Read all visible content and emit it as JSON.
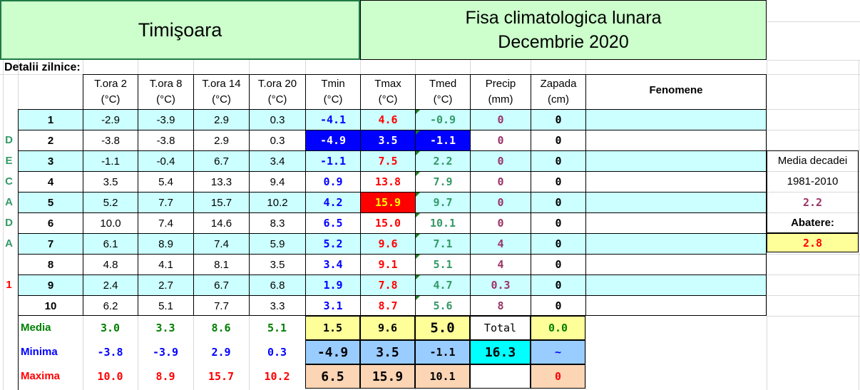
{
  "header": {
    "city": "Timişoara",
    "title_line1": "Fisa climatologica lunara",
    "title_line2": "Decembrie 2020"
  },
  "section_label": "Detalii zilnice:",
  "columns": [
    {
      "name": "T.ora 2",
      "unit": "(°C)"
    },
    {
      "name": "T.ora 8",
      "unit": "(°C)"
    },
    {
      "name": "T.ora 14",
      "unit": "(°C)"
    },
    {
      "name": "T.ora 20",
      "unit": "(°C)"
    },
    {
      "name": "Tmin",
      "unit": "(°C)"
    },
    {
      "name": "Tmax",
      "unit": "(°C)"
    },
    {
      "name": "Tmed",
      "unit": "(°C)"
    },
    {
      "name": "Precip",
      "unit": "(mm)"
    },
    {
      "name": "Zapada",
      "unit": "(cm)"
    }
  ],
  "fenomene_header": "Fenomene",
  "decade_letters": [
    "",
    "D",
    "E",
    "C",
    "A",
    "D",
    "A",
    "",
    "1",
    ""
  ],
  "rows": [
    {
      "day": "1",
      "vals": [
        "-2.9",
        "-3.9",
        "2.9",
        "0.3",
        "-4.1",
        "4.6",
        "-0.9",
        "0",
        "0"
      ]
    },
    {
      "day": "2",
      "vals": [
        "-3.8",
        "-3.8",
        "2.9",
        "0.3",
        "-4.9",
        "3.5",
        "-1.1",
        "0",
        "0"
      ]
    },
    {
      "day": "3",
      "vals": [
        "-1.1",
        "-0.4",
        "6.7",
        "3.4",
        "-1.1",
        "7.5",
        "2.2",
        "0",
        "0"
      ]
    },
    {
      "day": "4",
      "vals": [
        "3.5",
        "5.4",
        "13.3",
        "9.4",
        "0.9",
        "13.8",
        "7.9",
        "0",
        "0"
      ]
    },
    {
      "day": "5",
      "vals": [
        "5.2",
        "7.7",
        "15.7",
        "10.2",
        "4.2",
        "15.9",
        "9.7",
        "0",
        "0"
      ]
    },
    {
      "day": "6",
      "vals": [
        "10.0",
        "7.4",
        "14.6",
        "8.3",
        "6.5",
        "15.0",
        "10.1",
        "0",
        "0"
      ]
    },
    {
      "day": "7",
      "vals": [
        "6.1",
        "8.9",
        "7.4",
        "5.9",
        "5.2",
        "9.6",
        "7.1",
        "4",
        "0"
      ]
    },
    {
      "day": "8",
      "vals": [
        "4.8",
        "4.1",
        "8.1",
        "3.5",
        "3.4",
        "9.1",
        "5.1",
        "4",
        "0"
      ]
    },
    {
      "day": "9",
      "vals": [
        "2.4",
        "2.7",
        "6.7",
        "6.8",
        "1.9",
        "7.8",
        "4.7",
        "0.3",
        "0"
      ]
    },
    {
      "day": "10",
      "vals": [
        "6.2",
        "5.1",
        "7.7",
        "3.3",
        "3.1",
        "8.7",
        "5.6",
        "8",
        "0"
      ]
    }
  ],
  "summary": {
    "media": {
      "label": "Media",
      "vals": [
        "3.0",
        "3.3",
        "8.6",
        "5.1",
        "1.5",
        "9.6",
        "5.0",
        "Total",
        "0.0"
      ]
    },
    "minima": {
      "label": "Minima",
      "vals": [
        "-3.8",
        "-3.9",
        "2.9",
        "0.3",
        "-4.9",
        "3.5",
        "-1.1",
        "16.3",
        "~"
      ]
    },
    "maxima": {
      "label": "Maxima",
      "vals": [
        "10.0",
        "8.9",
        "15.7",
        "10.2",
        "6.5",
        "15.9",
        "10.1",
        "",
        "0"
      ]
    }
  },
  "side_panel": {
    "media_decadei": "Media decadei",
    "period": "1981-2010",
    "media_value": "2.2",
    "abatere_label": "Abatere:",
    "abatere_value": "2.8"
  },
  "colors": {
    "header_green": "#ccffcc",
    "row_cyan": "#ccffff",
    "blue_highlight": "#0000ff",
    "red_highlight": "#ff0000",
    "yellow_cell": "#ffff99",
    "light_blue_cell": "#99ccff",
    "peach_cell": "#fcd5b4",
    "cyan_total": "#00ffff",
    "tmin_text": "#0000ff",
    "tmax_text": "#ff0000",
    "tmed_text": "#339966",
    "precip_text": "#993366",
    "decade_letter_text": "#339966"
  }
}
